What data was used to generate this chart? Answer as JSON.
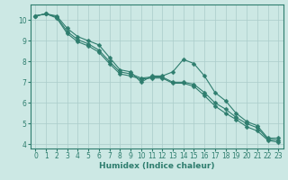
{
  "title": "",
  "xlabel": "Humidex (Indice chaleur)",
  "ylabel": "",
  "bg_color": "#cce8e4",
  "grid_color": "#aaccca",
  "line_color": "#2e7d6e",
  "series": [
    [
      10.2,
      10.3,
      10.2,
      9.6,
      9.2,
      9.0,
      8.8,
      8.2,
      7.6,
      7.5,
      7.0,
      7.3,
      7.3,
      7.5,
      8.1,
      7.9,
      7.3,
      6.5,
      6.1,
      5.5,
      5.1,
      4.9,
      4.3,
      4.3
    ],
    [
      10.2,
      10.3,
      10.15,
      9.45,
      9.05,
      8.85,
      8.55,
      8.0,
      7.5,
      7.4,
      7.2,
      7.25,
      7.25,
      7.0,
      7.0,
      6.9,
      6.5,
      6.0,
      5.7,
      5.3,
      5.0,
      4.8,
      4.25,
      4.2
    ],
    [
      10.2,
      10.3,
      10.1,
      9.35,
      8.95,
      8.75,
      8.45,
      7.9,
      7.4,
      7.3,
      7.15,
      7.2,
      7.2,
      6.95,
      6.95,
      6.8,
      6.35,
      5.85,
      5.5,
      5.2,
      4.85,
      4.65,
      4.2,
      4.1
    ]
  ],
  "xlim": [
    -0.5,
    23.5
  ],
  "ylim": [
    3.8,
    10.75
  ],
  "xticks": [
    0,
    1,
    2,
    3,
    4,
    5,
    6,
    7,
    8,
    9,
    10,
    11,
    12,
    13,
    14,
    15,
    16,
    17,
    18,
    19,
    20,
    21,
    22,
    23
  ],
  "yticks": [
    4,
    5,
    6,
    7,
    8,
    9,
    10
  ],
  "tick_fontsize": 5.5,
  "xlabel_fontsize": 6.5,
  "marker_size": 2.5,
  "linewidth": 0.8
}
